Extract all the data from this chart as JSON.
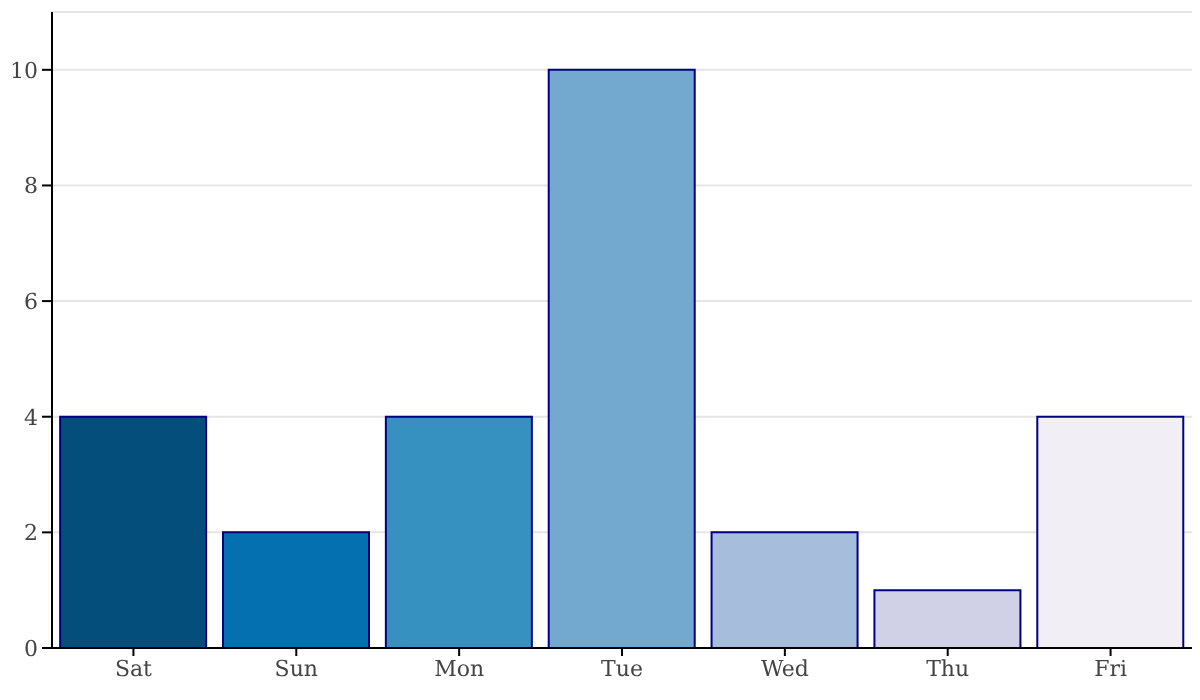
{
  "chart_data": {
    "type": "bar",
    "categories": [
      "Sat",
      "Sun",
      "Mon",
      "Tue",
      "Wed",
      "Thu",
      "Fri"
    ],
    "values": [
      4,
      2,
      4,
      10,
      2,
      1,
      4
    ],
    "colors": [
      "#034e7b",
      "#0570b0",
      "#3690c0",
      "#74a9cf",
      "#a6bddb",
      "#d0d1e6",
      "#f1eef6"
    ],
    "ylim": [
      0,
      11
    ],
    "yticks": [
      0,
      2,
      4,
      6,
      8,
      10
    ],
    "grid": "y",
    "legend": false
  }
}
